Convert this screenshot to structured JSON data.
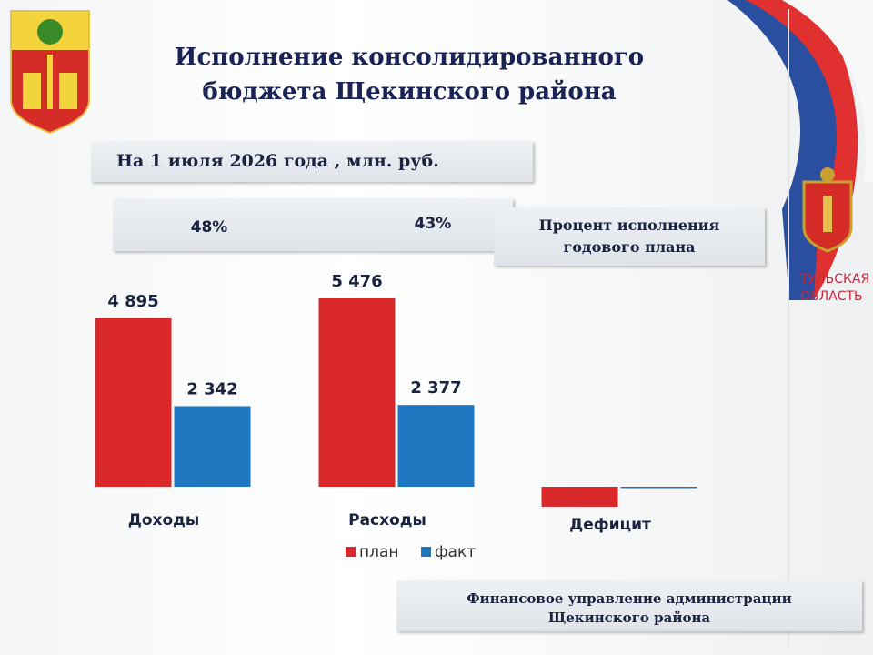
{
  "header": {
    "title": [
      "Исполнение консолидированного",
      "бюджета Щекинского района"
    ],
    "subtitle": "На 1 июля 2026 года , млн. руб.",
    "region": [
      "ТУЛЬСКАЯ",
      "ОБЛАСТЬ"
    ]
  },
  "chart_data": {
    "type": "bar",
    "categories": [
      "Доходы",
      "Расходы",
      "Дефицит"
    ],
    "percent_labels": [
      "48%",
      "43%"
    ],
    "percent_note": [
      "Процент исполнения",
      "годового плана"
    ],
    "series": [
      {
        "name": "план",
        "color": "#d8282a",
        "values": [
          4895,
          5476,
          -581
        ],
        "value_labels": [
          "4 895",
          "5 476",
          null
        ]
      },
      {
        "name": "факт",
        "color": "#1f78bf",
        "values": [
          2342,
          2377,
          -35
        ],
        "value_labels": [
          "2 342",
          "2 377",
          null
        ]
      }
    ]
  },
  "footer": [
    "Финансовое управление администрации",
    "Щекинского района"
  ]
}
